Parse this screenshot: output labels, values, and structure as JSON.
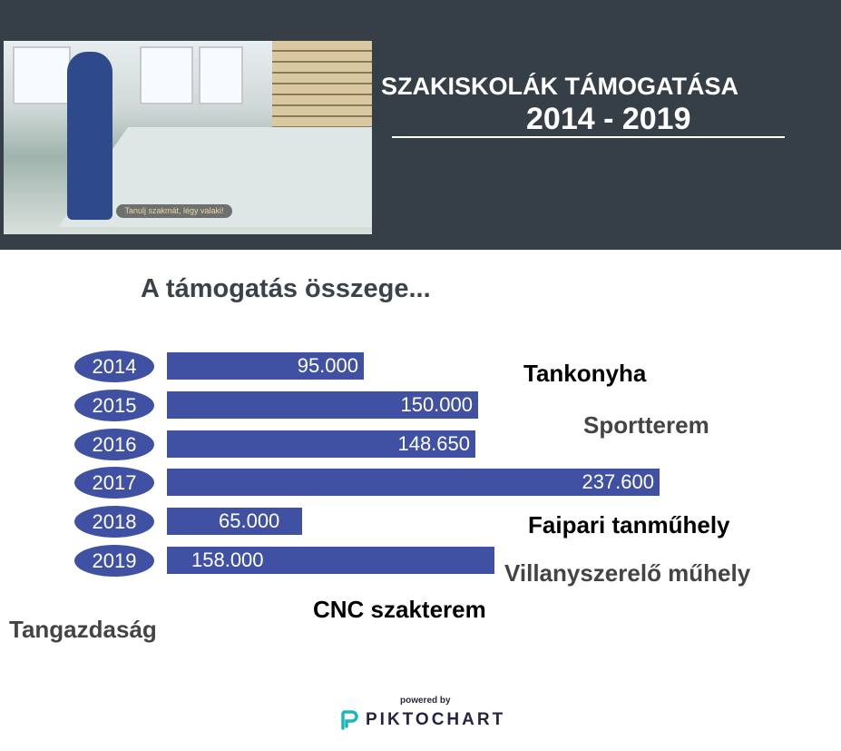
{
  "header": {
    "title": "SZAKISKOLÁK TÁMOGATÁSA",
    "years": "2014 - 2019",
    "photo_caption": "Tanulj szakmát, légy valaki!"
  },
  "subtitle": "A támogatás összege...",
  "chart_data": {
    "type": "bar",
    "orientation": "horizontal",
    "categories": [
      "2014",
      "2015",
      "2016",
      "2017",
      "2018",
      "2019"
    ],
    "values": [
      95000,
      150000,
      148650,
      237600,
      65000,
      158000
    ],
    "value_labels": [
      "95.000",
      "150.000",
      "148.650",
      "237.600",
      "65.000",
      "158.000"
    ],
    "color": "#4051a3"
  },
  "projects": [
    {
      "text": "Tankonyha",
      "color": "#000000"
    },
    {
      "text": "Sportterem",
      "color": "#444444"
    },
    {
      "text": "Faipari tanműhely",
      "color": "#000000"
    },
    {
      "text": "Villanyszerelő műhely",
      "color": "#444444"
    },
    {
      "text": "CNC szakterem",
      "color": "#000000"
    },
    {
      "text": "Tangazdaság",
      "color": "#444444"
    }
  ],
  "footer": {
    "powered_by": "powered by",
    "brand": "PIKTOCHART"
  }
}
